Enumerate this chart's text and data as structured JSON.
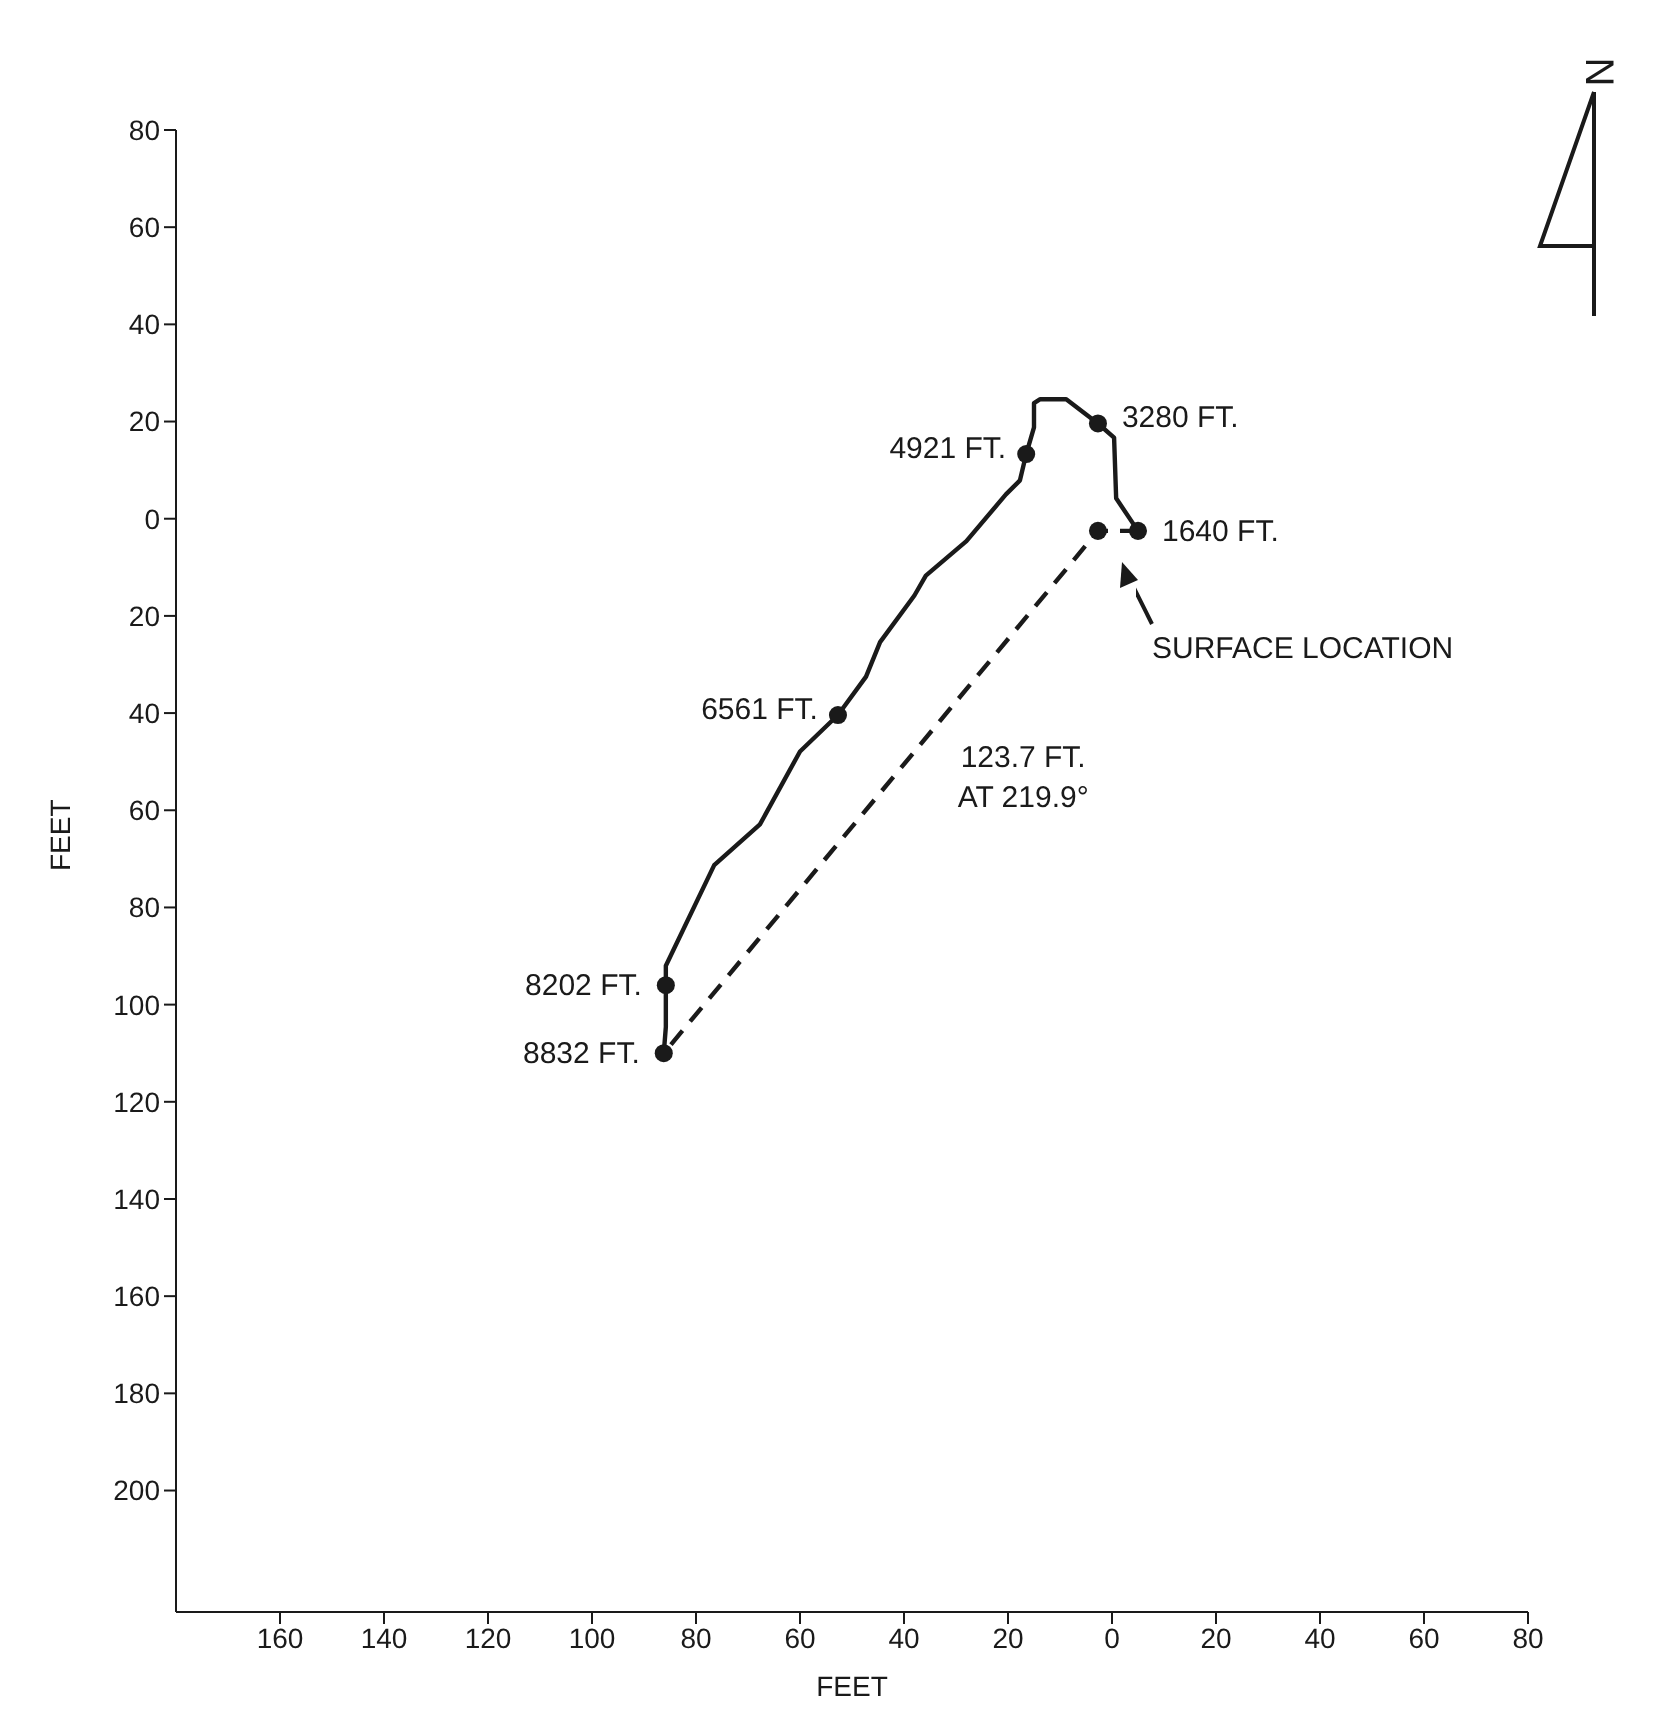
{
  "chart_data": {
    "type": "line",
    "xlabel": "FEET",
    "ylabel": "FEET",
    "xlim": [
      -180,
      80
    ],
    "ylim": [
      -225,
      80
    ],
    "xticks": [
      {
        "value": -160,
        "label": "160"
      },
      {
        "value": -140,
        "label": "140"
      },
      {
        "value": -120,
        "label": "120"
      },
      {
        "value": -100,
        "label": "100"
      },
      {
        "value": -80,
        "label": "80"
      },
      {
        "value": -60,
        "label": "60"
      },
      {
        "value": -40,
        "label": "40"
      },
      {
        "value": -20,
        "label": "20"
      },
      0,
      20,
      40,
      60,
      80
    ],
    "yticks": [
      80,
      60,
      40,
      20,
      0,
      {
        "value": -20,
        "label": "20"
      },
      {
        "value": -40,
        "label": "40"
      },
      {
        "value": -60,
        "label": "60"
      },
      {
        "value": -80,
        "label": "80"
      },
      {
        "value": -100,
        "label": "100"
      },
      {
        "value": -120,
        "label": "120"
      },
      {
        "value": -140,
        "label": "140"
      },
      {
        "value": -160,
        "label": "160"
      },
      {
        "value": -180,
        "label": "180"
      },
      {
        "value": -200,
        "label": "200"
      }
    ],
    "grid": false,
    "series": [
      {
        "line_style": "solid",
        "marker": "none",
        "color": "#1a1a1a",
        "x": [
          5,
          0.8,
          0.4,
          -2.7,
          -8.8,
          -13.8,
          -15,
          -15,
          -16.5,
          -17.7,
          -20.4,
          -28,
          -35.8,
          -38,
          -44.6,
          -47.3,
          -52.7,
          -60,
          -67.7,
          -76.5,
          -85.8,
          -85.8,
          -85.8,
          -86.2
        ],
        "values": [
          -2.5,
          4.2,
          16.7,
          19.6,
          24.6,
          24.6,
          23.8,
          18.8,
          13.3,
          7.9,
          5,
          -4.6,
          -11.7,
          -15.8,
          -25.4,
          -32.5,
          -40.4,
          -47.9,
          -62.9,
          -71.3,
          -92,
          -96,
          -104.6,
          -110
        ]
      },
      {
        "line_style": "dashed",
        "marker": "none",
        "color": "#1a1a1a",
        "x": [
          5,
          -2.7,
          -86.2
        ],
        "values": [
          -2.5,
          -2.5,
          -110
        ]
      },
      {
        "type": "scatter",
        "marker": "circle",
        "color": "#1a1a1a",
        "x": [
          5,
          -2.7,
          -16.5,
          -52.7,
          -85.8,
          -86.2,
          -2.7
        ],
        "values": [
          -2.5,
          19.6,
          13.3,
          -40.4,
          -96,
          -110,
          -2.5
        ]
      }
    ],
    "annotations": [
      {
        "text": "3280 FT.",
        "x": -2.7,
        "y": 19.6
      },
      {
        "text": "4921 FT.",
        "x": -16.5,
        "y": 13.3
      },
      {
        "text": "1640 FT.",
        "x": 5,
        "y": -2.5
      },
      "SURFACE LOCATION",
      {
        "text": "6561 FT.",
        "x": -52.7,
        "y": -40.4
      },
      {
        "text": "123.7 FT.",
        "x": -44,
        "y": -56
      },
      {
        "text": "AT 219.9°",
        "x": -44,
        "y": -56
      },
      {
        "text": "8202 FT.",
        "x": -85.8,
        "y": -96
      },
      {
        "text": "8832 FT.",
        "x": -86.2,
        "y": -110
      },
      "N"
    ]
  }
}
